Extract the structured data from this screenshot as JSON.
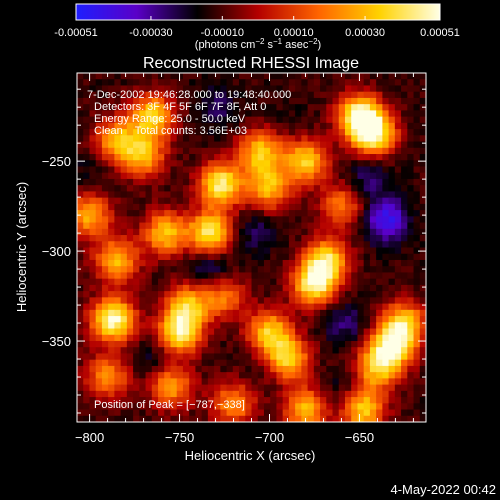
{
  "chart_data": {
    "type": "heatmap",
    "title": "Reconstructed RHESSI Image",
    "xlabel": "Heliocentric X (arcsec)",
    "ylabel": "Heliocentric Y (arcsec)",
    "xlim": [
      -807,
      -613
    ],
    "ylim": [
      -395,
      -201
    ],
    "x_ticks": [
      -800,
      -750,
      -700,
      -650
    ],
    "x_tick_labels": [
      "−800",
      "−750",
      "−700",
      "−650"
    ],
    "y_ticks": [
      -250,
      -300,
      -350
    ],
    "y_tick_labels": [
      "−250",
      "−300",
      "−350"
    ],
    "colorbar": {
      "range": [
        -0.00051,
        0.00051
      ],
      "ticks": [
        -0.00051,
        -0.0003,
        -0.0001,
        0.0001,
        0.0003,
        0.00051
      ],
      "tick_labels": [
        "-0.00051",
        "-0.00030",
        "-0.00010",
        "0.00010",
        "0.00030",
        "0.00051"
      ],
      "unit_label_parts": [
        "(photons cm",
        "−2",
        " s",
        "−1",
        " asec",
        "−2",
        ")"
      ],
      "colors": [
        "#1e1eff",
        "#5a00c8",
        "#000000",
        "#b40000",
        "#ff6400",
        "#ffd200",
        "#ffffe6"
      ]
    },
    "annotations": [
      "7-Dec-2002 19:46:28.000 to 19:48:40.000",
      "Detectors: 3F 4F 5F 6F 7F 8F, Att 0",
      "Energy Range: 25.0 - 50.0 keV",
      "Clean    Total counts: 3.56E+03"
    ],
    "peak_label": "Position of Peak = [−787,−338]",
    "peak_position": [
      -787,
      -338
    ],
    "bright_sources": [
      {
        "x": -650,
        "y": -225,
        "value": 0.00048
      },
      {
        "x": -642,
        "y": -235,
        "value": 0.00045
      },
      {
        "x": -680,
        "y": -250,
        "value": 0.00036
      },
      {
        "x": -705,
        "y": -245,
        "value": 0.00034
      },
      {
        "x": -700,
        "y": -265,
        "value": 0.0003
      },
      {
        "x": -727,
        "y": -263,
        "value": 0.00045
      },
      {
        "x": -733,
        "y": -290,
        "value": 0.00042
      },
      {
        "x": -770,
        "y": -247,
        "value": 0.0003
      },
      {
        "x": -765,
        "y": -225,
        "value": 0.00036
      },
      {
        "x": -785,
        "y": -238,
        "value": 0.00028
      },
      {
        "x": -758,
        "y": -290,
        "value": 0.00033
      },
      {
        "x": -785,
        "y": -305,
        "value": 0.0003
      },
      {
        "x": -787,
        "y": -338,
        "value": 0.00051
      },
      {
        "x": -750,
        "y": -345,
        "value": 0.00042
      },
      {
        "x": -745,
        "y": -330,
        "value": 0.0003
      },
      {
        "x": -675,
        "y": -318,
        "value": 0.00046
      },
      {
        "x": -668,
        "y": -305,
        "value": 0.00036
      },
      {
        "x": -700,
        "y": -345,
        "value": 0.00033
      },
      {
        "x": -690,
        "y": -360,
        "value": 0.00036
      },
      {
        "x": -632,
        "y": -353,
        "value": 0.00042
      },
      {
        "x": -640,
        "y": -365,
        "value": 0.0003
      },
      {
        "x": -625,
        "y": -340,
        "value": 0.00033
      },
      {
        "x": -648,
        "y": -388,
        "value": 0.00036
      },
      {
        "x": -680,
        "y": -388,
        "value": 0.0003
      },
      {
        "x": -755,
        "y": -375,
        "value": 0.00028
      },
      {
        "x": -800,
        "y": -280,
        "value": 0.0003
      },
      {
        "x": -790,
        "y": -370,
        "value": 0.00024
      },
      {
        "x": -720,
        "y": -385,
        "value": 0.00024
      },
      {
        "x": -725,
        "y": -325,
        "value": 0.0002
      },
      {
        "x": -660,
        "y": -275,
        "value": 0.0002
      }
    ],
    "negative_sources": [
      {
        "x": -635,
        "y": -283,
        "value": -0.00045
      },
      {
        "x": -645,
        "y": -260,
        "value": -0.00027
      },
      {
        "x": -733,
        "y": -310,
        "value": -0.0003
      },
      {
        "x": -730,
        "y": -220,
        "value": -0.00024
      },
      {
        "x": -658,
        "y": -340,
        "value": -0.00027
      },
      {
        "x": -700,
        "y": -365,
        "value": -0.00018
      },
      {
        "x": -707,
        "y": -290,
        "value": -0.00024
      },
      {
        "x": -660,
        "y": -378,
        "value": -0.00021
      },
      {
        "x": -763,
        "y": -362,
        "value": -0.00024
      },
      {
        "x": -800,
        "y": -258,
        "value": -0.00018
      },
      {
        "x": -690,
        "y": -230,
        "value": -0.00015
      }
    ]
  },
  "footer": {
    "timestamp": "4-May-2022 00:42"
  }
}
